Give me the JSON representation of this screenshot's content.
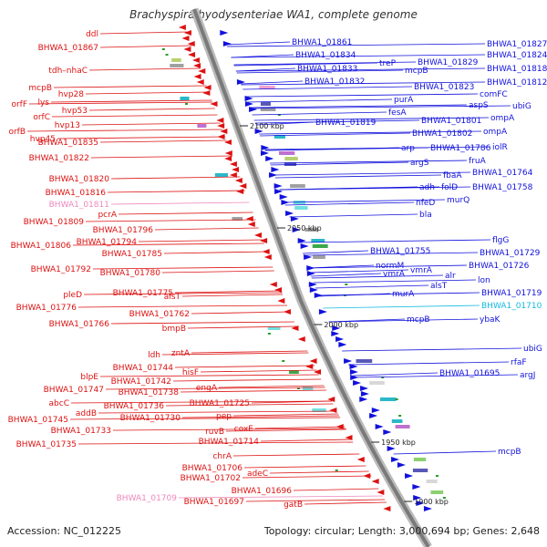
{
  "title": "Brachyspira hyodysenteriae WA1, complete genome",
  "footer": {
    "accession": "Accession: NC_012225",
    "summary": "Topology: circular; Length: 3,000,694 bp; Genes: 2,648"
  },
  "colors": {
    "reverse_strand": "#dd1111",
    "forward_strand": "#1111dd",
    "rna_label": "#ee88bb",
    "cyan_label": "#11bbdd",
    "backbone": "#888888"
  },
  "scale_marks": [
    "2100 kbp",
    "2050 kbp",
    "2000 kbp",
    "1950 kbp",
    "1900 kbp"
  ],
  "left_labels": [
    {
      "text": "ddl",
      "color": "#dd1111"
    },
    {
      "text": "BHWA1_01867",
      "color": "#dd1111"
    },
    {
      "text": "tdh–nhaC",
      "color": "#dd1111"
    },
    {
      "text": "mcpB",
      "color": "#dd1111"
    },
    {
      "text": "hvp28",
      "color": "#dd1111"
    },
    {
      "text": "orfF",
      "color": "#dd1111"
    },
    {
      "text": "lys",
      "color": "#dd1111"
    },
    {
      "text": "hvp53",
      "color": "#dd1111"
    },
    {
      "text": "orfC",
      "color": "#dd1111"
    },
    {
      "text": "hvp13",
      "color": "#dd1111"
    },
    {
      "text": "orfB",
      "color": "#dd1111"
    },
    {
      "text": "hvp45",
      "color": "#dd1111"
    },
    {
      "text": "BHWA1_01835",
      "color": "#dd1111"
    },
    {
      "text": "BHWA1_01822",
      "color": "#dd1111"
    },
    {
      "text": "BHWA1_01820",
      "color": "#dd1111"
    },
    {
      "text": "BHWA1_01816",
      "color": "#dd1111"
    },
    {
      "text": "BHWA1_01811",
      "color": "#ee88bb"
    },
    {
      "text": "pcrA",
      "color": "#dd1111"
    },
    {
      "text": "BHWA1_01809",
      "color": "#dd1111"
    },
    {
      "text": "BHWA1_01796",
      "color": "#dd1111"
    },
    {
      "text": "BHWA1_01806",
      "color": "#dd1111"
    },
    {
      "text": "BHWA1_01794",
      "color": "#dd1111"
    },
    {
      "text": "BHWA1_01785",
      "color": "#dd1111"
    },
    {
      "text": "BHWA1_01792",
      "color": "#dd1111"
    },
    {
      "text": "BHWA1_01780",
      "color": "#dd1111"
    },
    {
      "text": "pleD",
      "color": "#dd1111"
    },
    {
      "text": "BHWA1_01775",
      "color": "#dd1111"
    },
    {
      "text": "alsT",
      "color": "#dd1111"
    },
    {
      "text": "BHWA1_01776",
      "color": "#dd1111"
    },
    {
      "text": "BHWA1_01762",
      "color": "#dd1111"
    },
    {
      "text": "BHWA1_01766",
      "color": "#dd1111"
    },
    {
      "text": "bmpB",
      "color": "#dd1111"
    },
    {
      "text": "ldh",
      "color": "#dd1111"
    },
    {
      "text": "zntA",
      "color": "#dd1111"
    },
    {
      "text": "BHWA1_01744",
      "color": "#dd1111"
    },
    {
      "text": "hisF",
      "color": "#dd1111"
    },
    {
      "text": "blpE",
      "color": "#dd1111"
    },
    {
      "text": "BHWA1_01742",
      "color": "#dd1111"
    },
    {
      "text": "BHWA1_01747",
      "color": "#dd1111"
    },
    {
      "text": "BHWA1_01738",
      "color": "#dd1111"
    },
    {
      "text": "engA",
      "color": "#dd1111"
    },
    {
      "text": "abcC",
      "color": "#dd1111"
    },
    {
      "text": "BHWA1_01736",
      "color": "#dd1111"
    },
    {
      "text": "BHWA1_01725",
      "color": "#dd1111"
    },
    {
      "text": "addB",
      "color": "#dd1111"
    },
    {
      "text": "BHWA1_01745",
      "color": "#dd1111"
    },
    {
      "text": "BHWA1_01730",
      "color": "#dd1111"
    },
    {
      "text": "pep",
      "color": "#dd1111"
    },
    {
      "text": "BHWA1_01733",
      "color": "#dd1111"
    },
    {
      "text": "ruvB",
      "color": "#dd1111"
    },
    {
      "text": "coxE",
      "color": "#dd1111"
    },
    {
      "text": "BHWA1_01735",
      "color": "#dd1111"
    },
    {
      "text": "BHWA1_01714",
      "color": "#dd1111"
    },
    {
      "text": "chrA",
      "color": "#dd1111"
    },
    {
      "text": "BHWA1_01706",
      "color": "#dd1111"
    },
    {
      "text": "adeC",
      "color": "#dd1111"
    },
    {
      "text": "BHWA1_01702",
      "color": "#dd1111"
    },
    {
      "text": "BHWA1_01696",
      "color": "#dd1111"
    },
    {
      "text": "BHWA1_01709",
      "color": "#ee88bb"
    },
    {
      "text": "gatB",
      "color": "#dd1111"
    },
    {
      "text": "BHWA1_01697",
      "color": "#dd1111"
    }
  ],
  "right_labels": [
    {
      "text": "BHWA1_01861",
      "color": "#1111dd"
    },
    {
      "text": "BHWA1_01827",
      "color": "#1111dd"
    },
    {
      "text": "BHWA1_01834",
      "color": "#1111dd"
    },
    {
      "text": "treP",
      "color": "#1111dd"
    },
    {
      "text": "BHWA1_01829",
      "color": "#1111dd"
    },
    {
      "text": "BHWA1_01824",
      "color": "#1111dd"
    },
    {
      "text": "BHWA1_01833",
      "color": "#1111dd"
    },
    {
      "text": "mcpB",
      "color": "#1111dd"
    },
    {
      "text": "BHWA1_01818",
      "color": "#1111dd"
    },
    {
      "text": "BHWA1_01832",
      "color": "#1111dd"
    },
    {
      "text": "BHWA1_01823",
      "color": "#1111dd"
    },
    {
      "text": "BHWA1_01812",
      "color": "#1111dd"
    },
    {
      "text": "purA",
      "color": "#1111dd"
    },
    {
      "text": "comFC",
      "color": "#1111dd"
    },
    {
      "text": "fesA",
      "color": "#1111dd"
    },
    {
      "text": "aspS",
      "color": "#1111dd"
    },
    {
      "text": "ubiG",
      "color": "#1111dd"
    },
    {
      "text": "BHWA1_01819",
      "color": "#1111dd"
    },
    {
      "text": "BHWA1_01801",
      "color": "#1111dd"
    },
    {
      "text": "ompA",
      "color": "#1111dd"
    },
    {
      "text": "BHWA1_01802",
      "color": "#1111dd"
    },
    {
      "text": "ompA",
      "color": "#1111dd"
    },
    {
      "text": "arp",
      "color": "#1111dd"
    },
    {
      "text": "BHWA1_01786",
      "color": "#1111dd"
    },
    {
      "text": "iolR",
      "color": "#1111dd"
    },
    {
      "text": "argS",
      "color": "#1111dd"
    },
    {
      "text": "fruA",
      "color": "#1111dd"
    },
    {
      "text": "fbaA",
      "color": "#1111dd"
    },
    {
      "text": "BHWA1_01764",
      "color": "#1111dd"
    },
    {
      "text": "adh",
      "color": "#1111dd"
    },
    {
      "text": "folD",
      "color": "#1111dd"
    },
    {
      "text": "BHWA1_01758",
      "color": "#1111dd"
    },
    {
      "text": "nfeD",
      "color": "#1111dd"
    },
    {
      "text": "murQ",
      "color": "#1111dd"
    },
    {
      "text": "bla",
      "color": "#1111dd"
    },
    {
      "text": "flgG",
      "color": "#1111dd"
    },
    {
      "text": "BHWA1_01755",
      "color": "#1111dd"
    },
    {
      "text": "BHWA1_01729",
      "color": "#1111dd"
    },
    {
      "text": "normM",
      "color": "#1111dd"
    },
    {
      "text": "vmrA",
      "color": "#1111dd"
    },
    {
      "text": "vmrA",
      "color": "#1111dd"
    },
    {
      "text": "BHWA1_01726",
      "color": "#1111dd"
    },
    {
      "text": "alr",
      "color": "#1111dd"
    },
    {
      "text": "alsT",
      "color": "#1111dd"
    },
    {
      "text": "lon",
      "color": "#1111dd"
    },
    {
      "text": "murA",
      "color": "#1111dd"
    },
    {
      "text": "BHWA1_01719",
      "color": "#1111dd"
    },
    {
      "text": "BHWA1_01710",
      "color": "#11bbdd"
    },
    {
      "text": "mcpB",
      "color": "#1111dd"
    },
    {
      "text": "ybaK",
      "color": "#1111dd"
    },
    {
      "text": "ubiG",
      "color": "#1111dd"
    },
    {
      "text": "rfaF",
      "color": "#1111dd"
    },
    {
      "text": "BHWA1_01695",
      "color": "#1111dd"
    },
    {
      "text": "argJ",
      "color": "#1111dd"
    },
    {
      "text": "mcpB",
      "color": "#1111dd"
    }
  ]
}
